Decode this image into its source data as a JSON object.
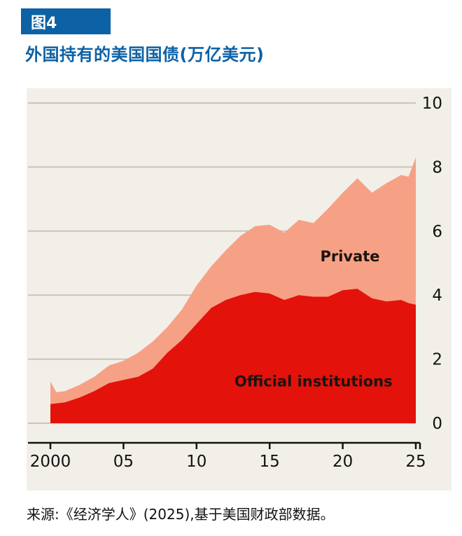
{
  "figure": {
    "badge": "图4",
    "title": "外国持有的美国国债(万亿美元)",
    "source": "来源:《经济学人》(2025),基于美国财政部数据。"
  },
  "colors": {
    "accent_blue": "#0d61a5",
    "official_red": "#e3120b",
    "private_pink": "#f6a185",
    "chart_bg": "#f2efe9",
    "gridline": "#c9c4ba",
    "axis": "#121212",
    "text": "#121212",
    "annotation_text": "#1b1410"
  },
  "chart_data": {
    "type": "area",
    "stacked": true,
    "title": "外国持有的美国国债(万亿美元)",
    "unit": "万亿美元 (trillions of US dollars)",
    "grid": true,
    "legend_position": "inline-annotations",
    "xlim": [
      2000,
      2025
    ],
    "ylim": [
      0,
      10
    ],
    "yticks": [
      0,
      2,
      4,
      6,
      8,
      10
    ],
    "xticks": [
      {
        "v": 2000,
        "label": "2000"
      },
      {
        "v": 2005,
        "label": "05"
      },
      {
        "v": 2010,
        "label": "10"
      },
      {
        "v": 2015,
        "label": "15"
      },
      {
        "v": 2020,
        "label": "20"
      },
      {
        "v": 2025,
        "label": "25"
      }
    ],
    "x": [
      2000,
      2000.4,
      2001,
      2002,
      2003,
      2004,
      2005,
      2006,
      2007,
      2008,
      2009,
      2010,
      2011,
      2012,
      2013,
      2014,
      2015,
      2016,
      2017,
      2018,
      2019,
      2020,
      2021,
      2022,
      2023,
      2024,
      2024.5,
      2025
    ],
    "series": [
      {
        "name": "Official institutions",
        "color_key": "official_red",
        "values": [
          0.6,
          0.62,
          0.65,
          0.8,
          1.0,
          1.25,
          1.35,
          1.45,
          1.7,
          2.2,
          2.6,
          3.1,
          3.6,
          3.85,
          4.0,
          4.1,
          4.05,
          3.85,
          4.0,
          3.95,
          3.95,
          4.15,
          4.2,
          3.9,
          3.8,
          3.85,
          3.75,
          3.7
        ]
      },
      {
        "name": "Private",
        "color_key": "private_pink",
        "values": [
          0.7,
          0.35,
          0.35,
          0.4,
          0.45,
          0.55,
          0.6,
          0.75,
          0.85,
          0.8,
          0.95,
          1.2,
          1.3,
          1.55,
          1.85,
          2.05,
          2.15,
          2.1,
          2.35,
          2.3,
          2.75,
          3.05,
          3.45,
          3.3,
          3.7,
          3.9,
          3.95,
          4.6
        ]
      }
    ],
    "annotations": [
      {
        "text": "Private",
        "x": 2020.5,
        "y": 5.05
      },
      {
        "text": "Official institutions",
        "x": 2018.0,
        "y": 1.15
      }
    ]
  }
}
